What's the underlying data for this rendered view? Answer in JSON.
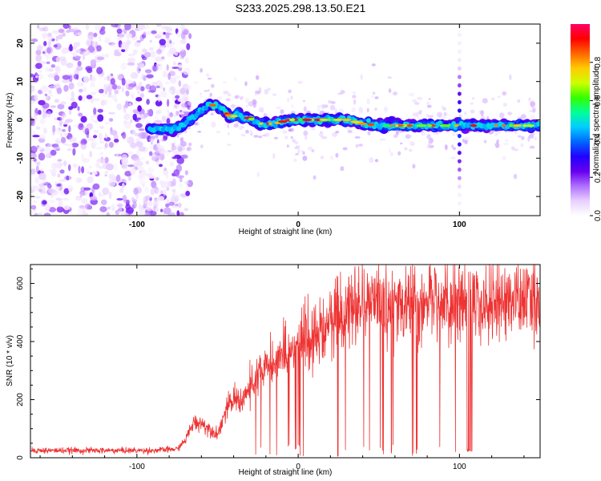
{
  "title": "S233.2025.298.13.50.E21",
  "chart_data": [
    {
      "type": "heatmap",
      "xlabel": "Height of straight line (km)",
      "ylabel": "Frequency (Hz)",
      "xlim": [
        -166,
        150
      ],
      "ylim": [
        -25,
        25
      ],
      "xticks": [
        -100,
        0,
        100
      ],
      "yticks": [
        -20,
        -10,
        0,
        10,
        20
      ],
      "colorbar": {
        "label": "Normalized spectral amplitude",
        "range": [
          0,
          1
        ],
        "ticks": [
          "0.0",
          "0.2",
          "0.4",
          "0.6",
          "0.8"
        ],
        "tick_values": [
          0,
          0.2,
          0.4,
          0.6,
          0.8
        ],
        "colors": [
          "#ffffff",
          "#e8d0ff",
          "#b070ff",
          "#6600ee",
          "#2200ff",
          "#0066ff",
          "#00ccff",
          "#00ff99",
          "#33ff00",
          "#ccff00",
          "#ffcc00",
          "#ff6600",
          "#ff0000",
          "#ff0066"
        ]
      },
      "ridge": {
        "x": [
          -92,
          -85,
          -78,
          -72,
          -66,
          -60,
          -55,
          -50,
          -46,
          -42,
          -38,
          -34,
          -30,
          -25,
          -20,
          -15,
          -10,
          -5,
          0,
          10,
          20,
          30,
          40,
          50,
          60,
          70,
          80,
          90,
          100,
          110,
          120,
          130,
          140,
          148
        ],
        "y": [
          -2.5,
          -2.5,
          -2.5,
          -1.5,
          0.5,
          2.5,
          4.0,
          3.5,
          2.5,
          0.5,
          1.5,
          0.5,
          0.5,
          -1.0,
          -1.0,
          -1.0,
          -0.5,
          0.0,
          0.0,
          0.0,
          0.0,
          0.0,
          -1.0,
          -1.5,
          -1.5,
          -1.5,
          -1.5,
          -1.5,
          -1.5,
          -1.5,
          -1.5,
          -1.5,
          -1.5,
          -1.5
        ]
      },
      "noise_region_x": [
        -166,
        -75
      ],
      "vertical_artifact_x": 100
    },
    {
      "type": "line",
      "xlabel": "Height of straight line (km)",
      "ylabel": "SNR (10 * v/v)",
      "xlim": [
        -166,
        150
      ],
      "ylim": [
        0,
        665
      ],
      "xticks": [
        -100,
        0,
        100
      ],
      "yticks": [
        0,
        200,
        400,
        600
      ],
      "color": "#ee3333",
      "envelope": {
        "x": [
          -166,
          -120,
          -90,
          -75,
          -70,
          -65,
          -60,
          -50,
          -45,
          -40,
          -35,
          -30,
          -25,
          -20,
          -15,
          -10,
          -5,
          0,
          10,
          20,
          30,
          40,
          60,
          80,
          100,
          120,
          150
        ],
        "y": [
          25,
          25,
          25,
          30,
          60,
          120,
          120,
          80,
          160,
          200,
          200,
          240,
          280,
          310,
          330,
          350,
          360,
          380,
          420,
          460,
          500,
          520,
          520,
          520,
          520,
          540,
          540
        ]
      },
      "dropout_bands_x": [
        [
          -35,
          30
        ],
        [
          40,
          98
        ]
      ],
      "dropout_gap_x": [
        104,
        108
      ]
    }
  ]
}
